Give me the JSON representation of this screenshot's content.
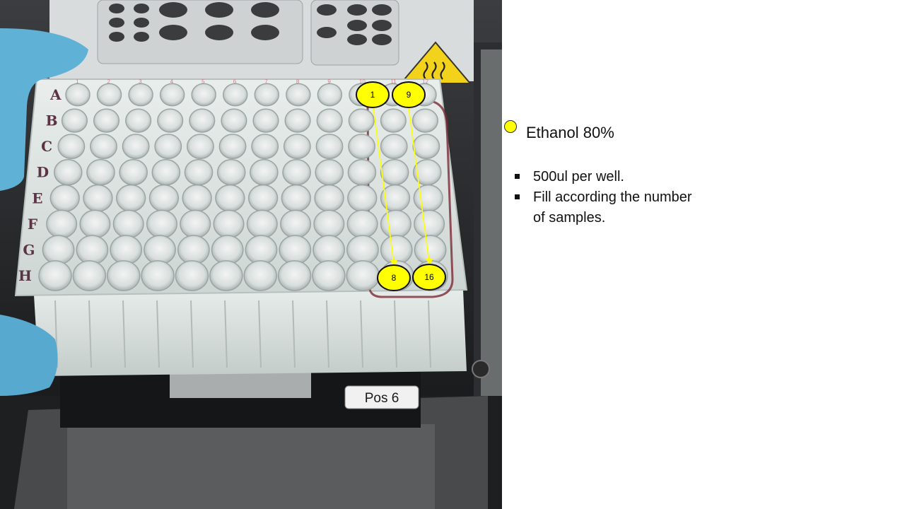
{
  "photo": {
    "description_icon": "plate-photo",
    "plate_position_label": "Pos 6",
    "row_letters": [
      "A",
      "B",
      "C",
      "D",
      "E",
      "F",
      "G",
      "H"
    ],
    "column_numbers": [
      "1",
      "2",
      "3",
      "4",
      "5",
      "6",
      "7",
      "8",
      "9",
      "10",
      "11",
      "12"
    ],
    "markers": {
      "start_col11": "1",
      "start_col12": "9",
      "end_col11": "8",
      "end_col12": "16"
    },
    "accent_color": "#ffff00"
  },
  "legend": {
    "dot_color": "#ffff00",
    "label": "Ethanol 80%"
  },
  "notes": [
    "500ul per well.",
    "Fill according the number of samples."
  ]
}
